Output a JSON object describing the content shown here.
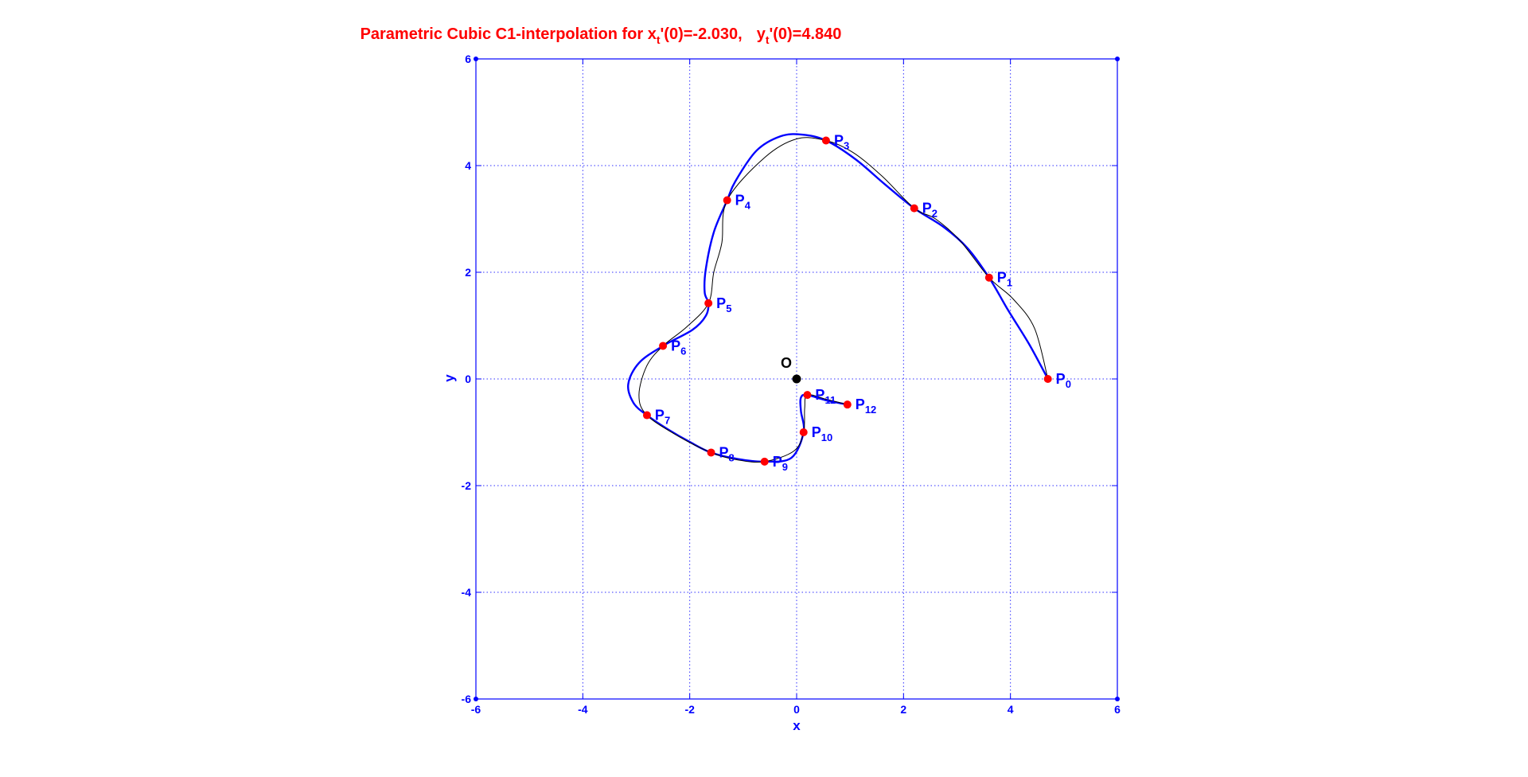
{
  "chart_data": {
    "type": "line",
    "title": {
      "prefix": "Parametric Cubic C1-interpolation  for x",
      "x_sub": "t",
      "x_value": "'(0)=-2.030,",
      "y_var": "y",
      "y_sub": "t",
      "y_value": "'(0)=4.840"
    },
    "xlabel": "x",
    "ylabel": "y",
    "xlim": [
      -6,
      6
    ],
    "ylim": [
      -6,
      6
    ],
    "xticks": [
      -6,
      -4,
      -2,
      0,
      2,
      4,
      6
    ],
    "yticks": [
      -6,
      -4,
      -2,
      0,
      2,
      4,
      6
    ],
    "grid": true,
    "colors": {
      "title": "#ff0000",
      "axes": "#0000ff",
      "grid": "#0000ff",
      "interpolant": "#0000ff",
      "reference_curve": "#000000",
      "points": "#ff0000",
      "origin": "#000000"
    },
    "points": [
      {
        "name": "P",
        "sub": "0",
        "x": 4.7,
        "y": 0.0
      },
      {
        "name": "P",
        "sub": "1",
        "x": 3.6,
        "y": 1.9
      },
      {
        "name": "P",
        "sub": "2",
        "x": 2.2,
        "y": 3.2
      },
      {
        "name": "P",
        "sub": "3",
        "x": 0.55,
        "y": 4.47
      },
      {
        "name": "P",
        "sub": "4",
        "x": -1.3,
        "y": 3.35
      },
      {
        "name": "P",
        "sub": "5",
        "x": -1.65,
        "y": 1.42
      },
      {
        "name": "P",
        "sub": "6",
        "x": -2.5,
        "y": 0.62
      },
      {
        "name": "P",
        "sub": "7",
        "x": -2.8,
        "y": -0.68
      },
      {
        "name": "P",
        "sub": "8",
        "x": -1.6,
        "y": -1.38
      },
      {
        "name": "P",
        "sub": "9",
        "x": -0.6,
        "y": -1.55
      },
      {
        "name": "P",
        "sub": "10",
        "x": 0.13,
        "y": -1.0
      },
      {
        "name": "P",
        "sub": "11",
        "x": 0.2,
        "y": -0.3
      },
      {
        "name": "P",
        "sub": "12",
        "x": 0.95,
        "y": -0.48
      }
    ],
    "origin": {
      "label": "O",
      "x": 0,
      "y": 0
    },
    "series": [
      {
        "style": "thick",
        "x": [
          4.7,
          4.35,
          3.95,
          3.6,
          3.2,
          2.75,
          2.2,
          1.65,
          1.1,
          0.55,
          0.1,
          -0.3,
          -0.75,
          -1.15,
          -1.3,
          -1.55,
          -1.7,
          -1.72,
          -1.65,
          -1.7,
          -1.95,
          -2.5,
          -2.95,
          -3.15,
          -3.05,
          -2.8,
          -2.4,
          -2.0,
          -1.6,
          -1.1,
          -0.6,
          -0.1,
          0.13,
          0.08,
          0.08,
          0.2,
          0.55,
          0.95
        ],
        "y": [
          0.0,
          0.65,
          1.3,
          1.9,
          2.45,
          2.85,
          3.2,
          3.65,
          4.12,
          4.47,
          4.58,
          4.55,
          4.28,
          3.7,
          3.35,
          2.75,
          2.05,
          1.62,
          1.42,
          1.18,
          0.92,
          0.62,
          0.3,
          -0.1,
          -0.45,
          -0.68,
          -0.95,
          -1.18,
          -1.38,
          -1.5,
          -1.55,
          -1.48,
          -1.0,
          -0.6,
          -0.35,
          -0.3,
          -0.4,
          -0.48
        ]
      },
      {
        "style": "thin",
        "x": [
          4.7,
          4.45,
          4.05,
          3.6,
          3.05,
          2.6,
          2.2,
          1.6,
          1.05,
          0.55,
          0.0,
          -0.6,
          -1.3,
          -1.4,
          -1.55,
          -1.65,
          -2.05,
          -2.5,
          -2.8,
          -2.95,
          -2.8,
          -2.2,
          -1.6,
          -1.1,
          -0.6,
          -0.05,
          0.13,
          0.15,
          0.2,
          0.55,
          0.95
        ],
        "y": [
          0.0,
          0.95,
          1.5,
          1.9,
          2.6,
          3.0,
          3.2,
          3.8,
          4.25,
          4.47,
          4.5,
          4.15,
          3.35,
          2.55,
          2.0,
          1.42,
          0.98,
          0.62,
          0.25,
          -0.3,
          -0.68,
          -1.08,
          -1.38,
          -1.52,
          -1.55,
          -1.35,
          -1.0,
          -0.55,
          -0.3,
          -0.38,
          -0.48
        ]
      }
    ]
  }
}
